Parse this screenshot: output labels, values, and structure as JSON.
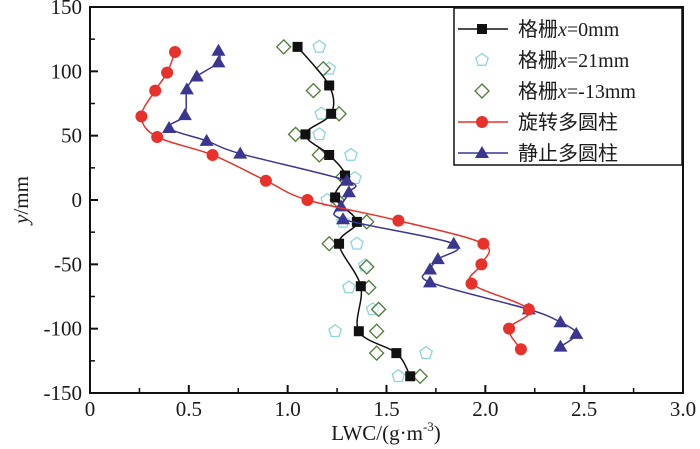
{
  "chart_data": {
    "type": "line",
    "title": "",
    "xlabel": "LWC/(g·m",
    "xlabel_sup": "-3",
    "xlabel_close": ")",
    "ylabel_italic": "y",
    "ylabel_rest": "/mm",
    "xlim": [
      0,
      3.0
    ],
    "ylim": [
      -150,
      150
    ],
    "xticks": [
      0,
      0.5,
      1.0,
      1.5,
      2.0,
      2.5,
      3.0
    ],
    "xtick_labels": [
      "0",
      "0.5",
      "1.0",
      "1.5",
      "2.0",
      "2.5",
      "3.0"
    ],
    "yticks": [
      -150,
      -100,
      -50,
      0,
      50,
      100,
      150
    ],
    "ytick_labels": [
      "-150",
      "-100",
      "-50",
      "0",
      "50",
      "100",
      "150"
    ],
    "grid": false,
    "legend_position": "top-right",
    "series": [
      {
        "name": "格栅x=0mm",
        "legend_prefix": "格栅",
        "legend_italic": "x",
        "legend_suffix": "=0mm",
        "marker": "square",
        "color": "#111111",
        "line": true,
        "points": [
          [
            1.05,
            119
          ],
          [
            1.21,
            89
          ],
          [
            1.22,
            67
          ],
          [
            1.09,
            51
          ],
          [
            1.21,
            35
          ],
          [
            1.29,
            19
          ],
          [
            1.24,
            2
          ],
          [
            1.35,
            -17
          ],
          [
            1.26,
            -34
          ],
          [
            1.37,
            -67
          ],
          [
            1.36,
            -102
          ],
          [
            1.55,
            -119
          ],
          [
            1.62,
            -137
          ]
        ]
      },
      {
        "name": "格栅x=21mm",
        "legend_prefix": "格栅",
        "legend_italic": "x",
        "legend_suffix": "=21mm",
        "marker": "pentagon",
        "color": "#8fd3de",
        "line": false,
        "points": [
          [
            1.16,
            119
          ],
          [
            1.21,
            102
          ],
          [
            1.17,
            67
          ],
          [
            1.16,
            51
          ],
          [
            1.32,
            35
          ],
          [
            1.34,
            17
          ],
          [
            1.2,
            0
          ],
          [
            1.28,
            -17
          ],
          [
            1.35,
            -34
          ],
          [
            1.39,
            -51
          ],
          [
            1.31,
            -68
          ],
          [
            1.43,
            -85
          ],
          [
            1.24,
            -102
          ],
          [
            1.7,
            -119
          ],
          [
            1.56,
            -137
          ]
        ]
      },
      {
        "name": "格栅x=-13mm",
        "legend_prefix": "格栅",
        "legend_italic": "x",
        "legend_suffix": "=-13mm",
        "marker": "diamond",
        "color": "#4f7a3a",
        "line": false,
        "points": [
          [
            0.98,
            119
          ],
          [
            1.18,
            102
          ],
          [
            1.13,
            85
          ],
          [
            1.26,
            67
          ],
          [
            1.04,
            51
          ],
          [
            1.16,
            35
          ],
          [
            1.28,
            18
          ],
          [
            1.25,
            0
          ],
          [
            1.4,
            -17
          ],
          [
            1.21,
            -34
          ],
          [
            1.4,
            -52
          ],
          [
            1.41,
            -68
          ],
          [
            1.46,
            -85
          ],
          [
            1.45,
            -102
          ],
          [
            1.45,
            -119
          ],
          [
            1.67,
            -137
          ]
        ]
      },
      {
        "name": "旋转多圆柱",
        "legend_prefix": "旋转多圆柱",
        "legend_italic": "",
        "legend_suffix": "",
        "marker": "circle",
        "color": "#e8312b",
        "line": true,
        "points": [
          [
            0.43,
            115
          ],
          [
            0.39,
            99
          ],
          [
            0.33,
            85
          ],
          [
            0.26,
            65
          ],
          [
            0.34,
            49
          ],
          [
            0.62,
            35
          ],
          [
            0.89,
            15
          ],
          [
            1.1,
            0
          ],
          [
            1.56,
            -16
          ],
          [
            1.99,
            -34
          ],
          [
            1.98,
            -50
          ],
          [
            1.93,
            -65
          ],
          [
            2.22,
            -85
          ],
          [
            2.12,
            -100
          ],
          [
            2.18,
            -116
          ]
        ]
      },
      {
        "name": "静止多圆柱",
        "legend_prefix": "静止多圆柱",
        "legend_italic": "",
        "legend_suffix": "",
        "marker": "triangle",
        "color": "#3b3690",
        "line": true,
        "points": [
          [
            0.65,
            116
          ],
          [
            0.65,
            107
          ],
          [
            0.54,
            96
          ],
          [
            0.49,
            86
          ],
          [
            0.48,
            66
          ],
          [
            0.4,
            56
          ],
          [
            0.59,
            46
          ],
          [
            0.76,
            36
          ],
          [
            1.3,
            15
          ],
          [
            1.31,
            6
          ],
          [
            1.27,
            -5
          ],
          [
            1.28,
            -15
          ],
          [
            1.84,
            -34
          ],
          [
            1.76,
            -46
          ],
          [
            1.72,
            -54
          ],
          [
            1.72,
            -64
          ],
          [
            2.22,
            -85
          ],
          [
            2.38,
            -95
          ],
          [
            2.46,
            -104
          ],
          [
            2.38,
            -114
          ]
        ]
      }
    ]
  }
}
